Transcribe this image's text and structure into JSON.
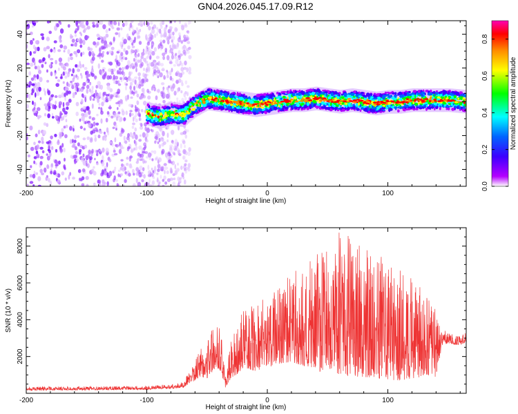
{
  "figure": {
    "title": "GN04.2026.045.17.09.R12"
  },
  "chart_data": [
    {
      "type": "heatmap",
      "name": "spectrogram",
      "xlabel": "Height of straight line (km)",
      "ylabel": "Frequency (Hz)",
      "xlim": [
        -200,
        165
      ],
      "ylim": [
        -50,
        48
      ],
      "xticks": [
        -200,
        -100,
        0,
        100
      ],
      "yticks": [
        -40,
        -20,
        0,
        20,
        40
      ],
      "noise_region_x": [
        -200,
        -72
      ],
      "signal_region_x": [
        -100,
        165
      ],
      "signal_center_hz": [
        [
          -100,
          -7
        ],
        [
          -90,
          -9
        ],
        [
          -80,
          -7
        ],
        [
          -70,
          -8
        ],
        [
          -60,
          -2
        ],
        [
          -50,
          2
        ],
        [
          -40,
          1
        ],
        [
          -30,
          0
        ],
        [
          -20,
          -1
        ],
        [
          -10,
          -2
        ],
        [
          0,
          -1
        ],
        [
          10,
          0
        ],
        [
          20,
          1
        ],
        [
          30,
          1
        ],
        [
          40,
          2
        ],
        [
          50,
          1
        ],
        [
          60,
          0
        ],
        [
          70,
          1
        ],
        [
          80,
          0
        ],
        [
          90,
          -1
        ],
        [
          100,
          0
        ],
        [
          110,
          0
        ],
        [
          120,
          1
        ],
        [
          130,
          1
        ],
        [
          140,
          1
        ],
        [
          150,
          1
        ],
        [
          165,
          0
        ]
      ],
      "colorbar": {
        "label": "Normalized spectral amplitude",
        "range": [
          0,
          0.9
        ],
        "ticks": [
          "0.0",
          "0.2",
          "0.4",
          "0.6",
          "0.8"
        ],
        "colors": [
          "#ffffff",
          "#b400ff",
          "#3c00ff",
          "#0064ff",
          "#00ffff",
          "#00ff00",
          "#ffff00",
          "#ff8c00",
          "#ff0000",
          "#ff00b4"
        ]
      }
    },
    {
      "type": "line",
      "name": "snr",
      "xlabel": "Height of straight line (km)",
      "ylabel": "SNR (10 * v/v)",
      "xlim": [
        -200,
        165
      ],
      "ylim": [
        0,
        9000
      ],
      "xticks": [
        -200,
        -100,
        0,
        100
      ],
      "yticks": [
        2000,
        4000,
        6000,
        8000
      ],
      "color": "#ee3333",
      "envelope": {
        "x": [
          -200,
          -100,
          -80,
          -70,
          -60,
          -55,
          -50,
          -45,
          -40,
          -38,
          -35,
          -30,
          -25,
          -20,
          -10,
          0,
          10,
          20,
          30,
          40,
          50,
          60,
          70,
          80,
          90,
          100,
          110,
          120,
          130,
          140,
          145,
          150,
          160,
          165
        ],
        "min": [
          150,
          200,
          250,
          300,
          700,
          900,
          800,
          1200,
          1300,
          1100,
          300,
          800,
          1000,
          1400,
          1200,
          1400,
          1600,
          1700,
          1500,
          1200,
          1100,
          1000,
          900,
          900,
          800,
          700,
          700,
          800,
          900,
          900,
          2600,
          2700,
          2600,
          2800
        ],
        "max": [
          350,
          400,
          500,
          600,
          1800,
          2600,
          3200,
          3800,
          3600,
          3200,
          800,
          3000,
          3800,
          4500,
          5000,
          5200,
          5800,
          6500,
          7000,
          7500,
          8200,
          9000,
          8600,
          8200,
          7600,
          7200,
          6900,
          6500,
          5500,
          4600,
          3500,
          3300,
          3100,
          3300
        ]
      }
    }
  ]
}
